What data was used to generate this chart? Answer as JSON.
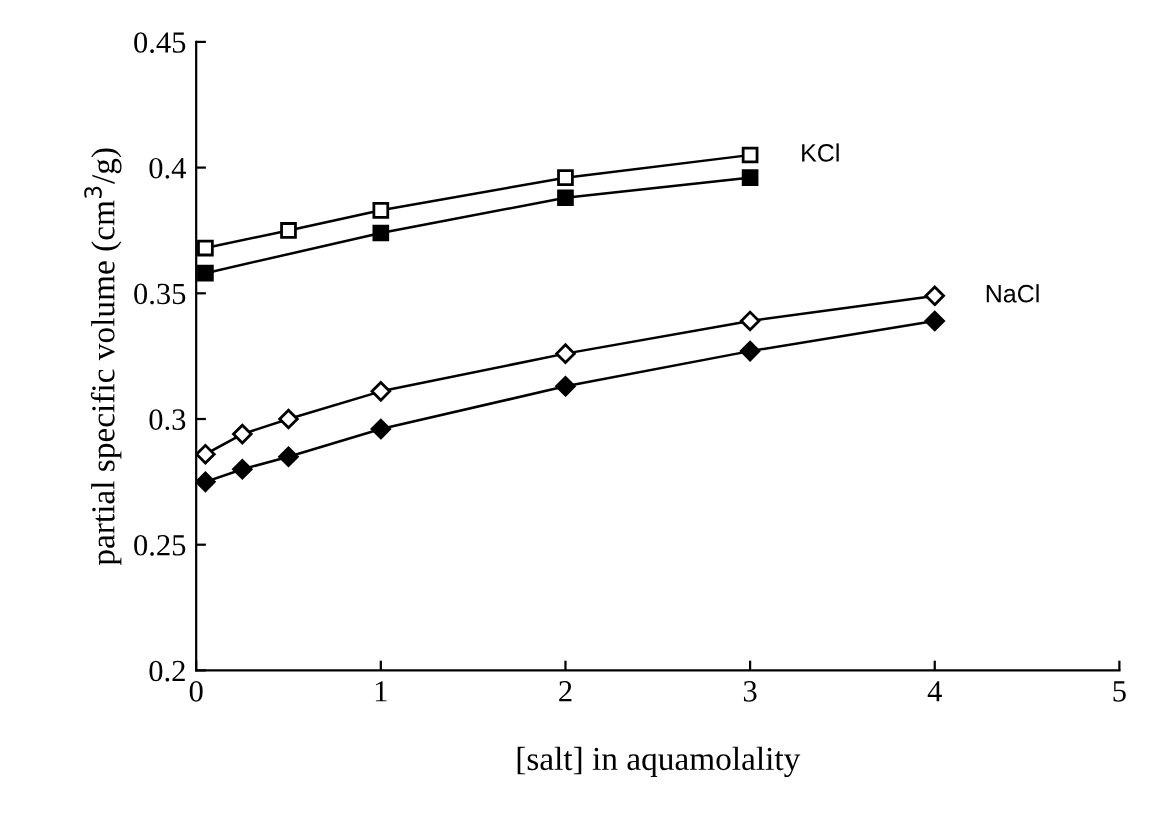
{
  "chart_data": {
    "type": "line",
    "xlabel": "[salt] in aquamolality",
    "ylabel": "partial specific volume (cm$^{3}$/g)",
    "xlim": [
      0,
      5
    ],
    "xticks": [
      0,
      1,
      2,
      3,
      4,
      5
    ],
    "ylim": [
      0.2,
      0.45
    ],
    "yticks": [
      0.2,
      0.25,
      0.3,
      0.35,
      0.4,
      0.45
    ],
    "grid": false,
    "legend": false,
    "series": [
      {
        "color": "#000000",
        "marker": "square",
        "x": [
          0.05,
          0.5,
          1,
          2,
          3
        ],
        "values": [
          0.368,
          0.375,
          0.383,
          0.396,
          0.405
        ]
      },
      {
        "color": "#000000",
        "marker": "square",
        "x": [
          0.05,
          1,
          2,
          3
        ],
        "values": [
          0.358,
          0.374,
          0.388,
          0.396
        ]
      },
      {
        "color": "#000000",
        "marker": "diamond",
        "x": [
          0.05,
          0.25,
          0.5,
          1,
          2,
          3,
          4
        ],
        "values": [
          0.286,
          0.294,
          0.3,
          0.311,
          0.326,
          0.339,
          0.349
        ]
      },
      {
        "color": "#000000",
        "marker": "diamond",
        "x": [
          0.05,
          0.25,
          0.5,
          1,
          2,
          3,
          4
        ],
        "values": [
          0.275,
          0.28,
          0.285,
          0.296,
          0.313,
          0.327,
          0.339
        ]
      }
    ],
    "annotations": [
      {
        "text": "KCl",
        "x": 3,
        "y": 0.405
      },
      {
        "text": "NaCl",
        "x": 4,
        "y": 0.349
      }
    ]
  }
}
